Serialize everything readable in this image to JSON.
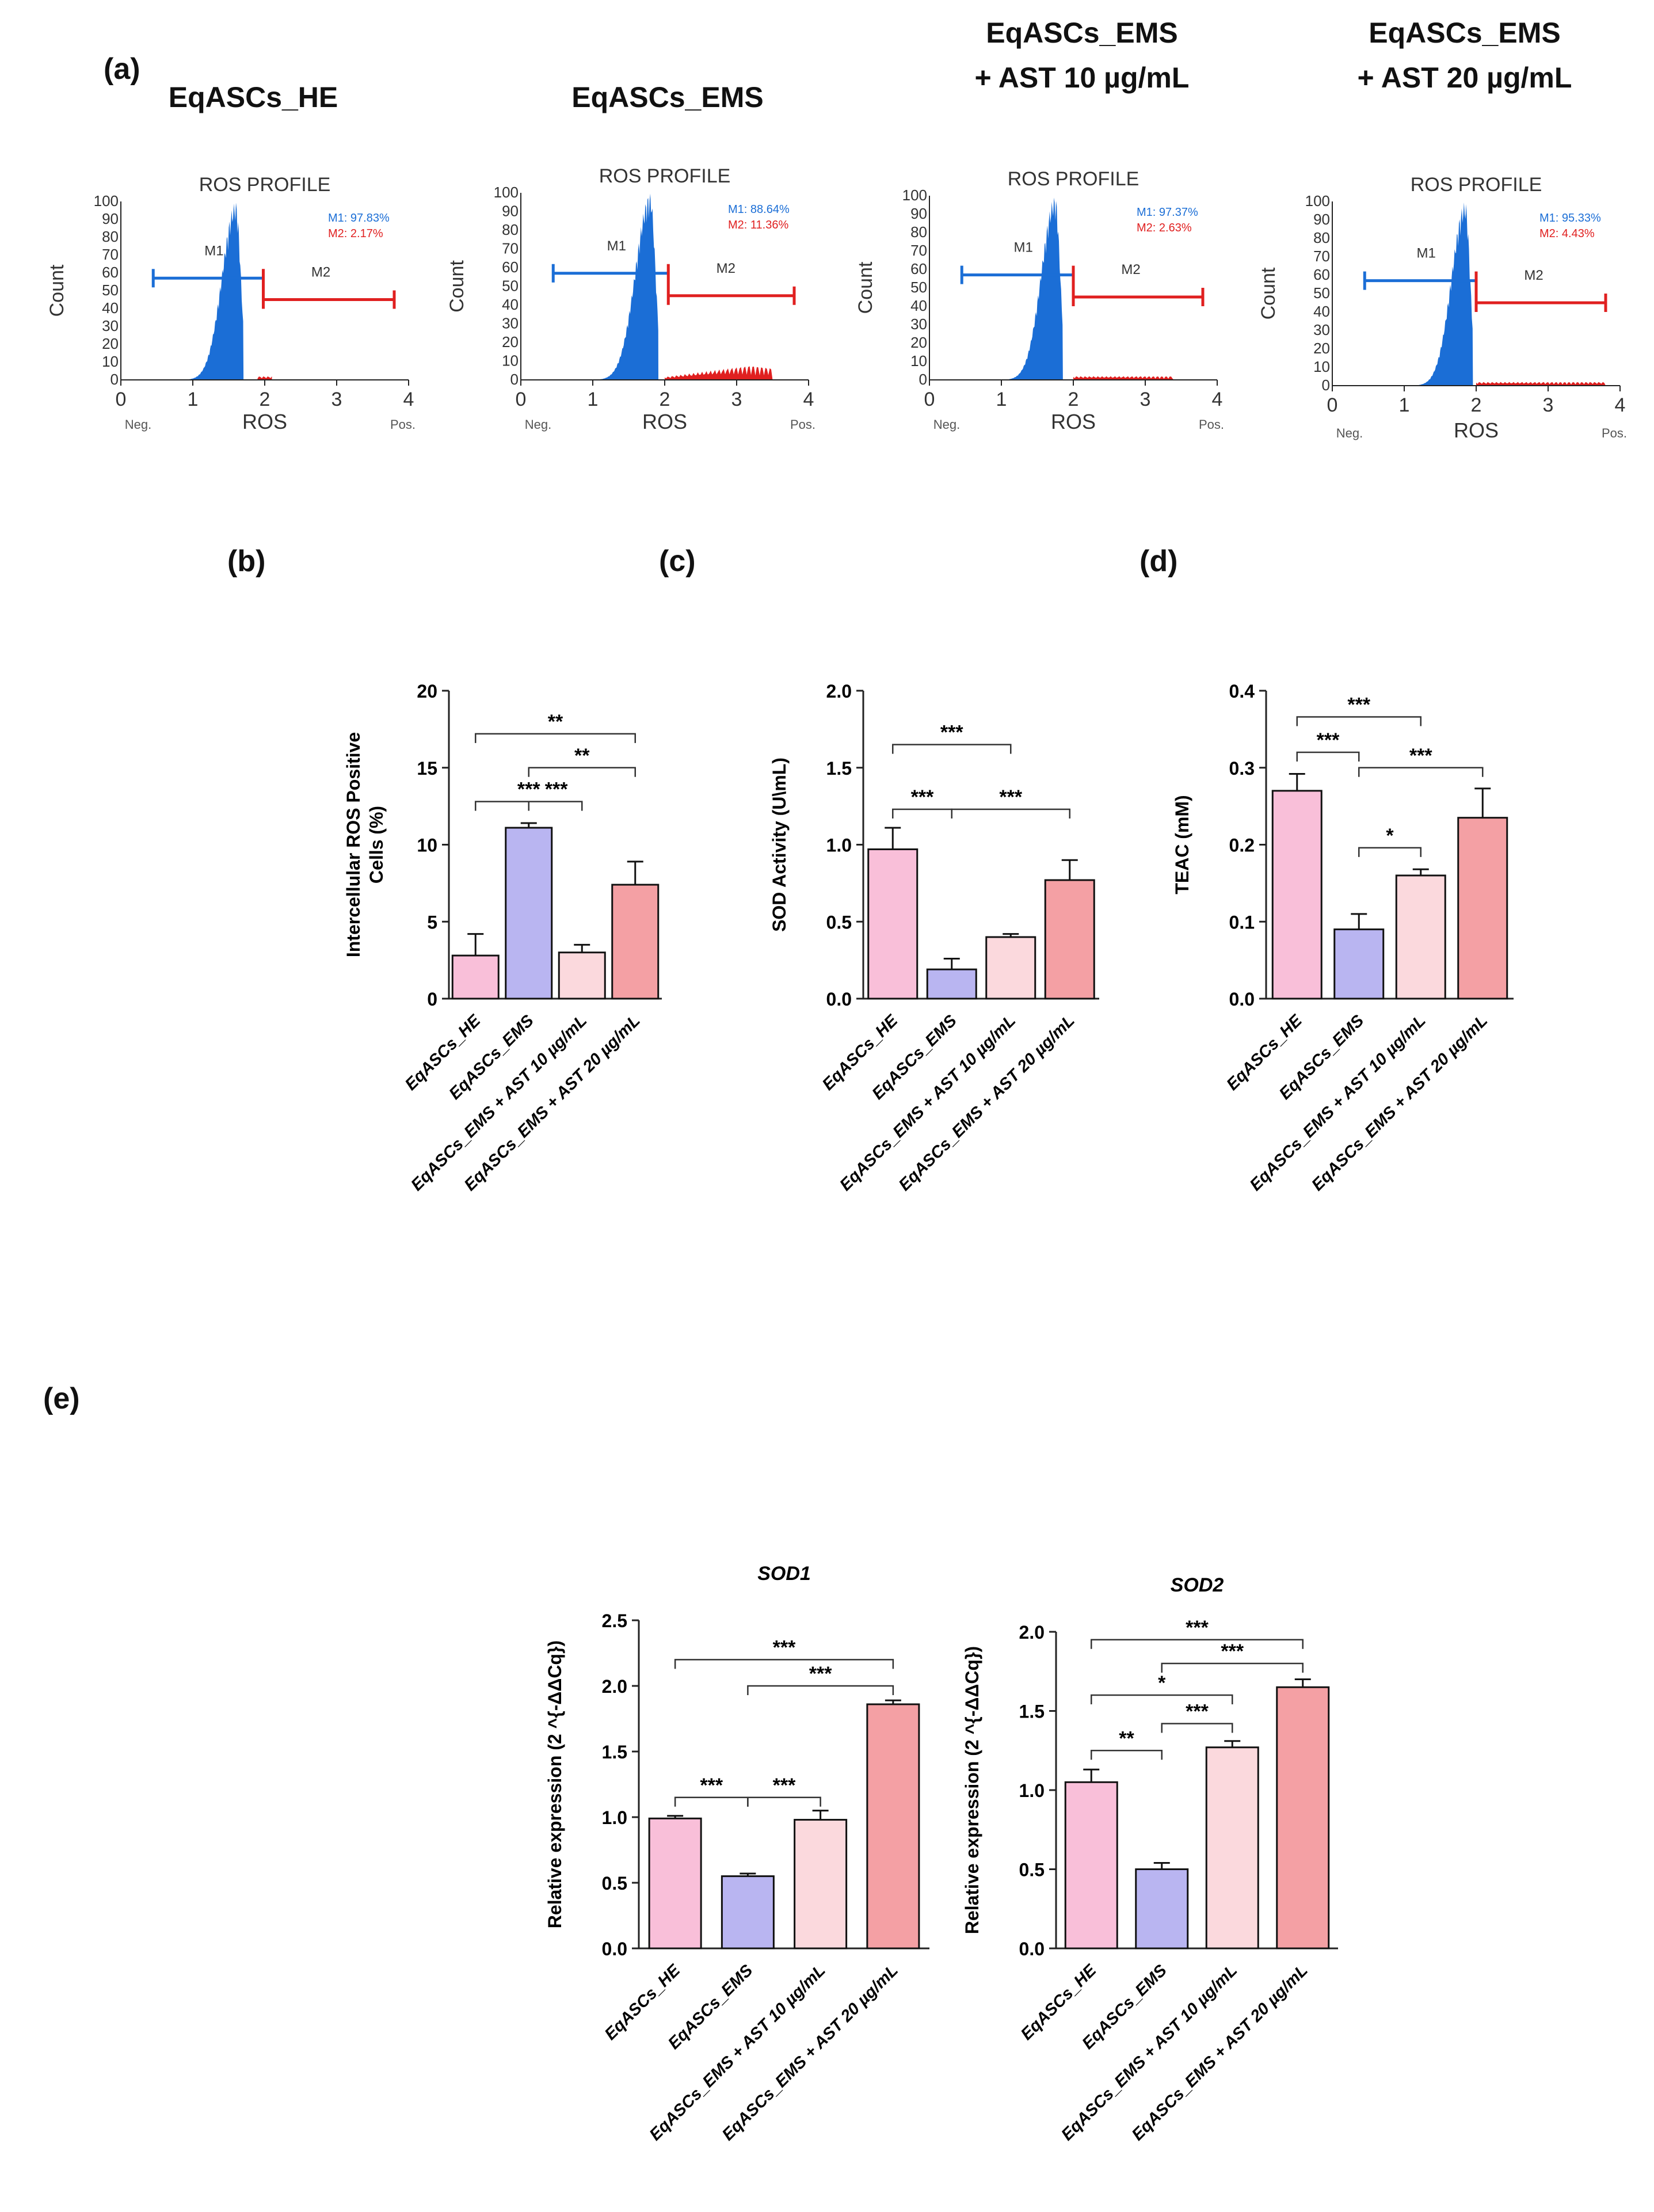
{
  "panel_labels": {
    "a": "(a)",
    "b": "(b)",
    "c": "(c)",
    "d": "(d)",
    "e": "(e)"
  },
  "flow_titles": [
    [
      "EqASCs_HE"
    ],
    [
      "EqASCs_EMS"
    ],
    [
      "EqASCs_EMS",
      "+ AST 10 µg/mL"
    ],
    [
      "EqASCs_EMS",
      "+ AST 20 µg/mL"
    ]
  ],
  "colors": {
    "he": "#f9bfd9",
    "ems": "#b9b5f1",
    "ast10": "#fbd9dd",
    "ast20": "#f4a0a4",
    "m1": "#1b6ed6",
    "m2": "#e02020",
    "axis": "#222222"
  },
  "chart_data": [
    {
      "id": "flow-he",
      "type": "area",
      "title": "ROS PROFILE",
      "xlabel": "ROS",
      "ylabel": "Count",
      "x_extra": [
        "Neg.",
        "Pos."
      ],
      "xlim": [
        0,
        4
      ],
      "ylim": [
        0,
        100
      ],
      "xticks": [
        "0",
        "1",
        "2",
        "3",
        "4"
      ],
      "yticks": [
        "0",
        "10",
        "20",
        "30",
        "40",
        "50",
        "60",
        "70",
        "80",
        "90",
        "100"
      ],
      "peak": 1.6,
      "width": 0.3,
      "height": 100,
      "tail_level": 2,
      "m2_range": [
        1.9,
        2.1
      ],
      "gates": {
        "M1": [
          0.45,
          1.98
        ],
        "M2": [
          1.98,
          3.8
        ]
      },
      "gate_labels": [
        "M1",
        "M2"
      ],
      "stats": [
        "M1: 97.83%",
        "M2: 2.17%"
      ]
    },
    {
      "id": "flow-ems",
      "type": "area",
      "title": "ROS PROFILE",
      "xlabel": "ROS",
      "ylabel": "Count",
      "x_extra": [
        "Neg.",
        "Pos."
      ],
      "xlim": [
        0,
        4
      ],
      "ylim": [
        0,
        100
      ],
      "xticks": [
        "0",
        "1",
        "2",
        "3",
        "4"
      ],
      "yticks": [
        "0",
        "10",
        "20",
        "30",
        "40",
        "50",
        "60",
        "70",
        "80",
        "90",
        "100"
      ],
      "peak": 1.8,
      "width": 0.32,
      "height": 100,
      "tail_level": 8,
      "m2_range": [
        2.0,
        3.5
      ],
      "gates": {
        "M1": [
          0.45,
          2.05
        ],
        "M2": [
          2.05,
          3.8
        ]
      },
      "gate_labels": [
        "M1",
        "M2"
      ],
      "stats": [
        "M1: 88.64%",
        "M2: 11.36%"
      ]
    },
    {
      "id": "flow-ast10",
      "type": "area",
      "title": "ROS PROFILE",
      "xlabel": "ROS",
      "ylabel": "Count",
      "x_extra": [
        "Neg.",
        "Pos."
      ],
      "xlim": [
        0,
        4
      ],
      "ylim": [
        0,
        100
      ],
      "xticks": [
        "0",
        "1",
        "2",
        "3",
        "4"
      ],
      "yticks": [
        "0",
        "10",
        "20",
        "30",
        "40",
        "50",
        "60",
        "70",
        "80",
        "90",
        "100"
      ],
      "peak": 1.75,
      "width": 0.3,
      "height": 100,
      "tail_level": 2,
      "m2_range": [
        2.0,
        3.4
      ],
      "gates": {
        "M1": [
          0.45,
          2.0
        ],
        "M2": [
          2.0,
          3.8
        ]
      },
      "gate_labels": [
        "M1",
        "M2"
      ],
      "stats": [
        "M1: 97.37%",
        "M2: 2.63%"
      ]
    },
    {
      "id": "flow-ast20",
      "type": "area",
      "title": "ROS PROFILE",
      "xlabel": "ROS",
      "ylabel": "Count",
      "x_extra": [
        "Neg.",
        "Pos."
      ],
      "xlim": [
        0,
        4
      ],
      "ylim": [
        0,
        100
      ],
      "xticks": [
        "0",
        "1",
        "2",
        "3",
        "4"
      ],
      "yticks": [
        "0",
        "10",
        "20",
        "30",
        "40",
        "50",
        "60",
        "70",
        "80",
        "90",
        "100"
      ],
      "peak": 1.85,
      "width": 0.3,
      "height": 100,
      "tail_level": 2,
      "m2_range": [
        2.0,
        3.8
      ],
      "gates": {
        "M1": [
          0.45,
          2.0
        ],
        "M2": [
          2.0,
          3.8
        ]
      },
      "gate_labels": [
        "M1",
        "M2"
      ],
      "stats": [
        "M1: 95.33%",
        "M2: 4.43%"
      ]
    },
    {
      "id": "bar-ros",
      "type": "bar",
      "title": "",
      "ylabel": [
        "Intercellular ROS Positive",
        "Cells (%)"
      ],
      "ylim": [
        0,
        20
      ],
      "yticks": [
        "0",
        "5",
        "10",
        "15",
        "20"
      ],
      "categories": [
        "EqASCs_HE",
        "EqASCs_EMS",
        "EqASCs_EMS + AST 10 µg/mL",
        "EqASCs_EMS + AST 20 µg/mL"
      ],
      "values": [
        2.8,
        11.1,
        3.0,
        7.4
      ],
      "errors": [
        1.4,
        0.3,
        0.5,
        1.5
      ],
      "brackets": [
        {
          "from": 0,
          "to": 3,
          "level": 17.2,
          "label": "**"
        },
        {
          "from": 1,
          "to": 3,
          "level": 15.0,
          "label": "**"
        },
        {
          "from": 0,
          "to": 2,
          "level": 12.8,
          "label": "***"
        },
        {
          "from": 1,
          "to": 1,
          "level": 12.8,
          "label": "***"
        }
      ],
      "sig_labels": [
        "**",
        "**",
        "***",
        "***"
      ]
    },
    {
      "id": "bar-sod",
      "type": "bar",
      "title": "",
      "ylabel": [
        "SOD Activity (U\\mL)"
      ],
      "ylim": [
        0,
        2.0
      ],
      "yticks": [
        "0.0",
        "0.5",
        "1.0",
        "1.5",
        "2.0"
      ],
      "categories": [
        "EqASCs_HE",
        "EqASCs_EMS",
        "EqASCs_EMS + AST 10 µg/mL",
        "EqASCs_EMS + AST 20 µg/mL"
      ],
      "values": [
        0.97,
        0.19,
        0.4,
        0.77
      ],
      "errors": [
        0.14,
        0.07,
        0.02,
        0.13
      ],
      "brackets": [
        {
          "from": 0,
          "to": 2,
          "level": 1.65,
          "label": "***"
        },
        {
          "from": 0,
          "to": 1,
          "level": 1.23,
          "label": "***"
        },
        {
          "from": 1,
          "to": 3,
          "level": 1.23,
          "label": "***"
        }
      ],
      "sig_labels": [
        "***",
        "***",
        "***"
      ]
    },
    {
      "id": "bar-teac",
      "type": "bar",
      "title": "",
      "ylabel": [
        "TEAC (mM)"
      ],
      "ylim": [
        0,
        0.4
      ],
      "yticks": [
        "0.0",
        "0.1",
        "0.2",
        "0.3",
        "0.4"
      ],
      "categories": [
        "EqASCs_HE",
        "EqASCs_EMS",
        "EqASCs_EMS + AST 10 µg/mL",
        "EqASCs_EMS + AST 20 µg/mL"
      ],
      "values": [
        0.27,
        0.09,
        0.16,
        0.235
      ],
      "errors": [
        0.022,
        0.02,
        0.008,
        0.038
      ],
      "brackets": [
        {
          "from": 0,
          "to": 2,
          "level": 0.366,
          "label": "***"
        },
        {
          "from": 0,
          "to": 1,
          "level": 0.32,
          "label": "***"
        },
        {
          "from": 1,
          "to": 3,
          "level": 0.3,
          "label": "***"
        },
        {
          "from": 1,
          "to": 2,
          "level": 0.196,
          "label": "*"
        }
      ],
      "sig_labels": [
        "***",
        "***",
        "***",
        "*"
      ]
    },
    {
      "id": "bar-sod1",
      "type": "bar",
      "title": "SOD1",
      "ylabel": [
        "Relative expression (2 ^{-ΔΔCq})"
      ],
      "ylim": [
        0,
        2.5
      ],
      "yticks": [
        "0.0",
        "0.5",
        "1.0",
        "1.5",
        "2.0",
        "2.5"
      ],
      "categories": [
        "EqASCs_HE",
        "EqASCs_EMS",
        "EqASCs_EMS + AST 10 µg/mL",
        "EqASCs_EMS + AST 20 µg/mL"
      ],
      "values": [
        0.99,
        0.55,
        0.98,
        1.86
      ],
      "errors": [
        0.02,
        0.02,
        0.07,
        0.03
      ],
      "brackets": [
        {
          "from": 0,
          "to": 3,
          "level": 2.2,
          "label": "***"
        },
        {
          "from": 1,
          "to": 3,
          "level": 2.0,
          "label": "***"
        },
        {
          "from": 0,
          "to": 1,
          "level": 1.15,
          "label": "***"
        },
        {
          "from": 1,
          "to": 2,
          "level": 1.15,
          "label": "***"
        }
      ],
      "sig_labels": [
        "***",
        "***",
        "***",
        "***"
      ]
    },
    {
      "id": "bar-sod2",
      "type": "bar",
      "title": "SOD2",
      "ylabel": [
        "Relative expression (2 ^{-ΔΔCq})"
      ],
      "ylim": [
        0,
        2.0
      ],
      "yticks": [
        "0.0",
        "0.5",
        "1.0",
        "1.5",
        "2.0"
      ],
      "categories": [
        "EqASCs_HE",
        "EqASCs_EMS",
        "EqASCs_EMS + AST 10 µg/mL",
        "EqASCs_EMS + AST 20 µg/mL"
      ],
      "values": [
        1.05,
        0.5,
        1.27,
        1.65
      ],
      "errors": [
        0.08,
        0.04,
        0.04,
        0.05
      ],
      "brackets": [
        {
          "from": 0,
          "to": 3,
          "level": 1.95,
          "label": "***"
        },
        {
          "from": 1,
          "to": 3,
          "level": 1.8,
          "label": "***"
        },
        {
          "from": 0,
          "to": 2,
          "level": 1.6,
          "label": "*"
        },
        {
          "from": 1,
          "to": 2,
          "level": 1.42,
          "label": "***"
        },
        {
          "from": 0,
          "to": 1,
          "level": 1.25,
          "label": "**"
        }
      ],
      "sig_labels": [
        "***",
        "***",
        "*",
        "***",
        "**"
      ]
    }
  ]
}
